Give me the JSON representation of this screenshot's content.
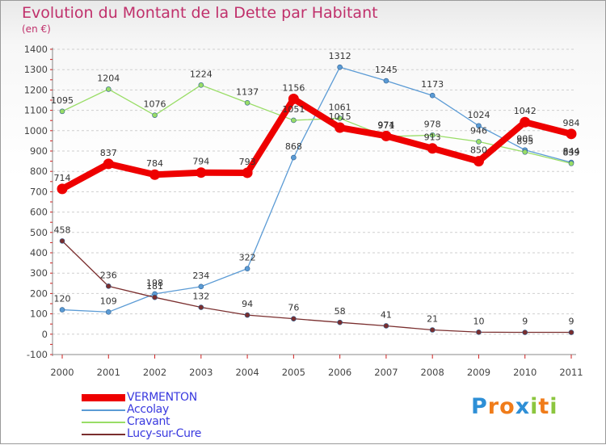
{
  "header": {
    "title": "Evolution du Montant de la Dette par Habitant",
    "subtitle": "(en €)"
  },
  "logo": {
    "letters": [
      "P",
      "r",
      "o",
      "x",
      "i",
      "t",
      "i"
    ],
    "colors": [
      "#2e8fd6",
      "#f07c1a",
      "#f07c1a",
      "#2e8fd6",
      "#8cc63f",
      "#f07c1a",
      "#8cc63f"
    ]
  },
  "chart_data": {
    "type": "line",
    "title": "Evolution du Montant de la Dette par Habitant",
    "subtitle": "(en €)",
    "x": [
      "2000",
      "2001",
      "2002",
      "2003",
      "2004",
      "2005",
      "2006",
      "2007",
      "2008",
      "2009",
      "2010",
      "2011"
    ],
    "ylim": [
      -100,
      1400
    ],
    "yticks": [
      -100,
      0,
      100,
      200,
      300,
      400,
      500,
      600,
      700,
      800,
      900,
      1000,
      1100,
      1200,
      1300,
      1400
    ],
    "grid": "horizontal dashed",
    "legend_position": "bottom-left",
    "series": [
      {
        "name": "VERMENTON",
        "color": "#ee0000",
        "width": 8,
        "values": [
          714,
          837,
          784,
          794,
          793,
          1156,
          1015,
          974,
          913,
          850,
          1042,
          984
        ]
      },
      {
        "name": "Accolay",
        "color": "#5b9bd5",
        "width": 1.3,
        "values": [
          120,
          109,
          198,
          234,
          322,
          868,
          1312,
          1245,
          1173,
          1024,
          905,
          844
        ]
      },
      {
        "name": "Cravant",
        "color": "#99dd66",
        "width": 1.3,
        "values": [
          1095,
          1204,
          1076,
          1224,
          1137,
          1051,
          1061,
          971,
          978,
          946,
          895,
          839
        ]
      },
      {
        "name": "Lucy-sur-Cure",
        "color": "#7a2e2e",
        "width": 1.3,
        "values": [
          458,
          236,
          181,
          132,
          94,
          76,
          58,
          41,
          21,
          10,
          9,
          9
        ]
      }
    ]
  }
}
